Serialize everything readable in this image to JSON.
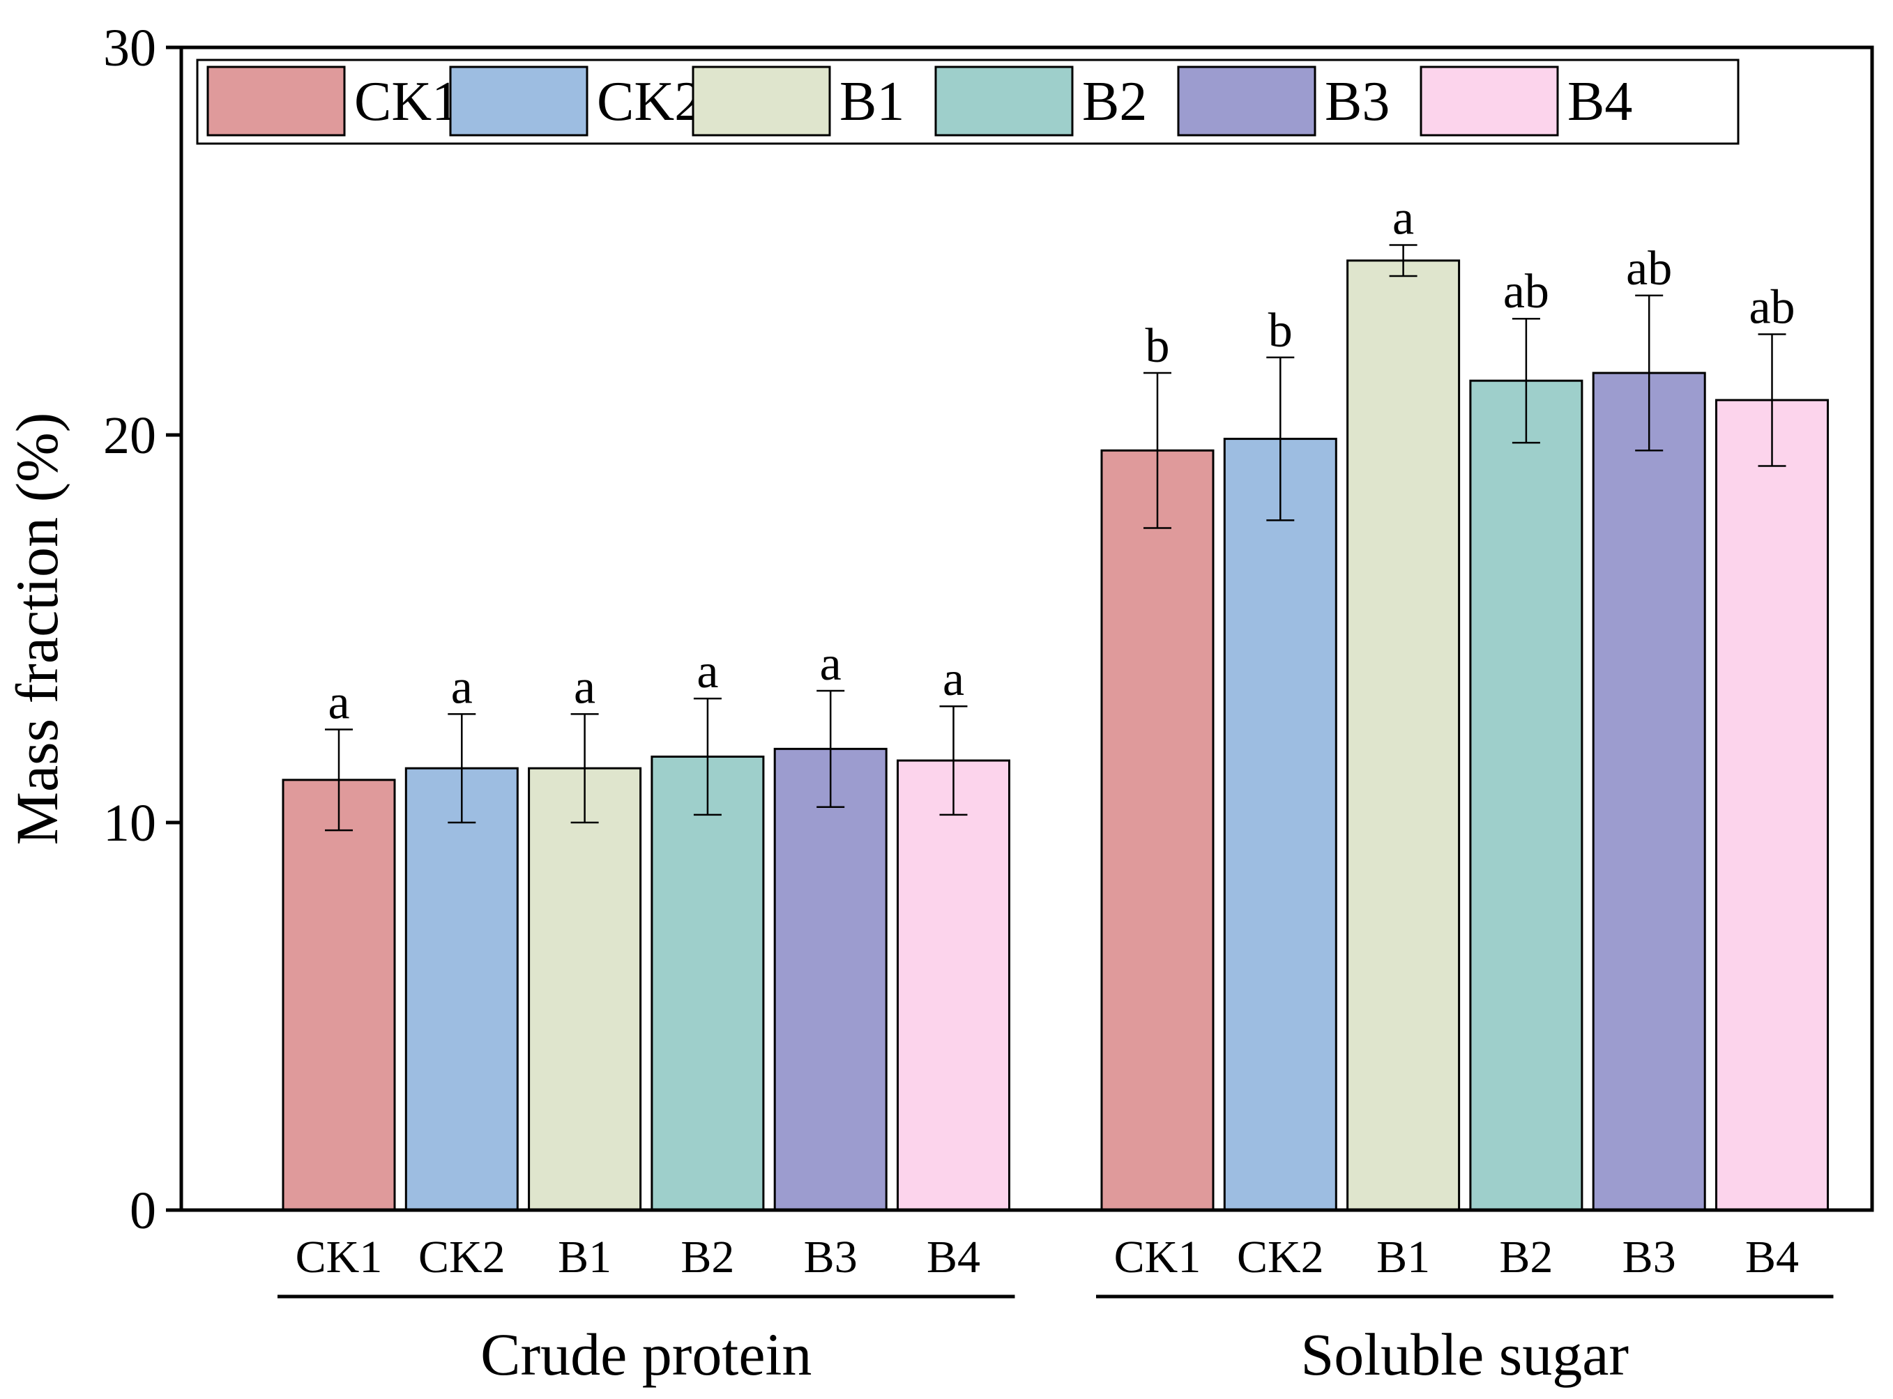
{
  "chart_data": {
    "type": "bar",
    "title": "",
    "xlabel": "",
    "ylabel": "Mass fraction (%)",
    "ylim": [
      0,
      30
    ],
    "yticks": [
      0,
      10,
      20,
      30
    ],
    "grid": false,
    "legend_position": "top",
    "groups": [
      {
        "name": "Crude protein",
        "categories": [
          "CK1",
          "CK2",
          "B1",
          "B2",
          "B3",
          "B4"
        ],
        "values": [
          11.1,
          11.4,
          11.4,
          11.7,
          11.9,
          11.6
        ],
        "errors": [
          1.3,
          1.4,
          1.4,
          1.5,
          1.5,
          1.4
        ],
        "significance": [
          "a",
          "a",
          "a",
          "a",
          "a",
          "a"
        ]
      },
      {
        "name": "Soluble sugar",
        "categories": [
          "CK1",
          "CK2",
          "B1",
          "B2",
          "B3",
          "B4"
        ],
        "values": [
          19.6,
          19.9,
          24.5,
          21.4,
          21.6,
          20.9
        ],
        "errors": [
          2.0,
          2.1,
          0.4,
          1.6,
          2.0,
          1.7
        ],
        "significance": [
          "b",
          "b",
          "a",
          "ab",
          "ab",
          "ab"
        ]
      }
    ],
    "series": [
      {
        "name": "CK1",
        "color": "#df9a9b"
      },
      {
        "name": "CK2",
        "color": "#9dbde1"
      },
      {
        "name": "B1",
        "color": "#dfe5cd"
      },
      {
        "name": "B2",
        "color": "#9ecfcb"
      },
      {
        "name": "B3",
        "color": "#9c9ccf"
      },
      {
        "name": "B4",
        "color": "#fcd4ec"
      }
    ]
  }
}
